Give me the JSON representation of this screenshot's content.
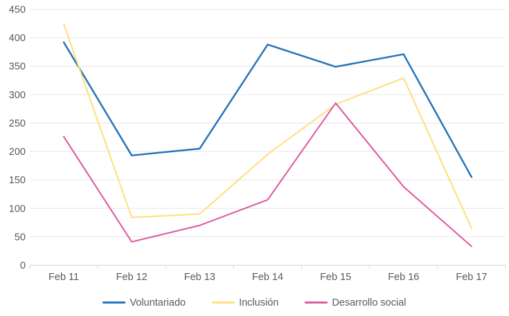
{
  "chart_data": {
    "type": "line",
    "title": "",
    "categories": [
      "Feb 11",
      "Feb 12",
      "Feb 13",
      "Feb 14",
      "Feb 15",
      "Feb 16",
      "Feb 17"
    ],
    "series": [
      {
        "name": "Voluntariado",
        "color": "#2674BB",
        "values": [
          392,
          193,
          205,
          388,
          349,
          371,
          155
        ]
      },
      {
        "name": "Inclusión",
        "color": "#FFDF7E",
        "values": [
          424,
          84,
          90,
          195,
          283,
          329,
          65
        ]
      },
      {
        "name": "Desarrollo social",
        "color": "#DE5BA2",
        "values": [
          226,
          41,
          70,
          115,
          285,
          138,
          33
        ]
      }
    ],
    "xlabel": "",
    "ylabel": "",
    "ylim": [
      0,
      450
    ],
    "y_ticks": [
      0,
      50,
      100,
      150,
      200,
      250,
      300,
      350,
      400,
      450
    ],
    "grid": "horizontal",
    "legend_position": "bottom"
  },
  "style": {
    "grid_color": "#e6e6e6",
    "axis_line_color": "#d6d6d6",
    "tick_label_color": "#595959",
    "background": "#ffffff"
  }
}
